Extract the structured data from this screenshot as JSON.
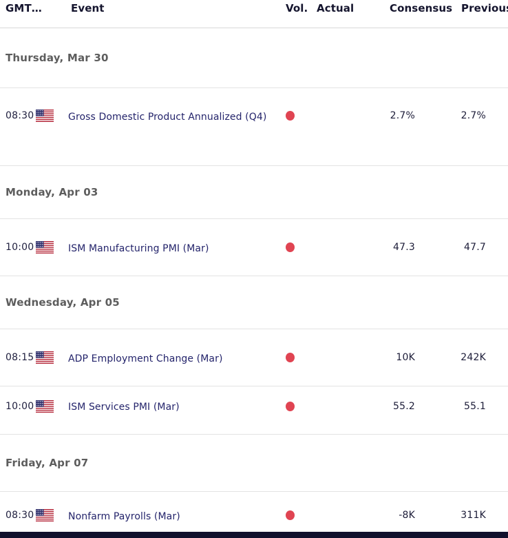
{
  "table": {
    "columns": [
      {
        "key": "gmt",
        "label": "GMT…"
      },
      {
        "key": "event",
        "label": "Event"
      },
      {
        "key": "vol",
        "label": "Vol."
      },
      {
        "key": "actual",
        "label": "Actual"
      },
      {
        "key": "consensus",
        "label": "Consensus"
      },
      {
        "key": "previous",
        "label": "Previous"
      }
    ]
  },
  "sections": [
    {
      "date": "Thursday, Mar 30",
      "events": [
        {
          "time": "08:30",
          "country": "United States",
          "flag": "us-flag-icon",
          "event": "Gross Domestic Product Annualized (Q4)",
          "volatility": "high",
          "volatility_icon": "high-volatility-dot-icon",
          "actual": "",
          "consensus": "2.7%",
          "previous": "2.7%"
        }
      ]
    },
    {
      "date": "Monday, Apr 03",
      "events": [
        {
          "time": "10:00",
          "country": "United States",
          "flag": "us-flag-icon",
          "event": "ISM Manufacturing PMI (Mar)",
          "volatility": "high",
          "volatility_icon": "high-volatility-dot-icon",
          "actual": "",
          "consensus": "47.3",
          "previous": "47.7"
        }
      ]
    },
    {
      "date": "Wednesday, Apr 05",
      "events": [
        {
          "time": "08:15",
          "country": "United States",
          "flag": "us-flag-icon",
          "event": "ADP Employment Change (Mar)",
          "volatility": "high",
          "volatility_icon": "high-volatility-dot-icon",
          "actual": "",
          "consensus": "10K",
          "previous": "242K"
        },
        {
          "time": "10:00",
          "country": "United States",
          "flag": "us-flag-icon",
          "event": "ISM Services PMI (Mar)",
          "volatility": "high",
          "volatility_icon": "high-volatility-dot-icon",
          "actual": "",
          "consensus": "55.2",
          "previous": "55.1"
        }
      ]
    },
    {
      "date": "Friday, Apr 07",
      "events": [
        {
          "time": "08:30",
          "country": "United States",
          "flag": "us-flag-icon",
          "event": "Nonfarm Payrolls (Mar)",
          "volatility": "high",
          "volatility_icon": "high-volatility-dot-icon",
          "actual": "",
          "consensus": "-8K",
          "previous": "311K"
        }
      ]
    }
  ],
  "colors": {
    "header_text": "#15152e",
    "section_date_text": "#5d5d5d",
    "time_text": "#20203f",
    "event_link": "#24246b",
    "value_text": "#1c1c38",
    "volatility_high_dot": "#e04452",
    "divider": "#e3e3e3",
    "footer_bar": "#10102c",
    "flag_red": "#b22234",
    "flag_canton_blue": "#2e2e6b"
  }
}
